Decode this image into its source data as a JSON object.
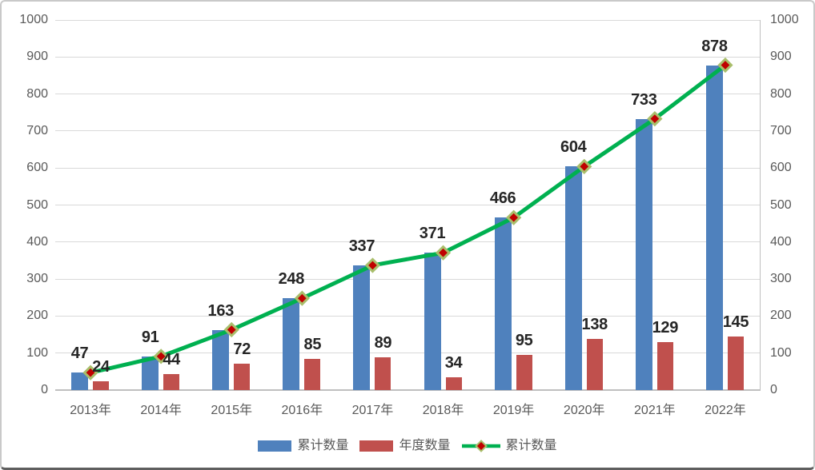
{
  "chart_data": {
    "type": "combo",
    "categories": [
      "2013年",
      "2014年",
      "2015年",
      "2016年",
      "2017年",
      "2018年",
      "2019年",
      "2020年",
      "2021年",
      "2022年"
    ],
    "series": [
      {
        "name": "累计数量",
        "kind": "bar",
        "color": "#4F81BD",
        "values": [
          47,
          91,
          163,
          248,
          337,
          371,
          466,
          604,
          733,
          878
        ]
      },
      {
        "name": "年度数量",
        "kind": "bar",
        "color": "#C0504D",
        "values": [
          24,
          44,
          72,
          85,
          89,
          34,
          95,
          138,
          129,
          145
        ]
      },
      {
        "name": "累计数量",
        "kind": "line",
        "color": "#00B050",
        "marker_shape": "diamond",
        "marker_fill": "#C00000",
        "marker_border": "#A9BE6B",
        "values": [
          47,
          91,
          163,
          248,
          337,
          371,
          466,
          604,
          733,
          878
        ]
      }
    ],
    "title": "",
    "xlabel": "",
    "ylabel": "",
    "ylim": [
      0,
      1000
    ],
    "y_step": 100,
    "left_axis_ticks": [
      "1000",
      "900",
      "800",
      "700",
      "600",
      "500",
      "400",
      "300",
      "200",
      "100",
      "0"
    ],
    "right_axis_ticks": [
      "1000",
      "900",
      "800",
      "700",
      "600",
      "500",
      "400",
      "300",
      "200",
      "100",
      "0"
    ],
    "grid": "horizontal-only",
    "legend_position": "bottom",
    "legend": [
      {
        "label": "累计数量",
        "swatch": "bar",
        "color": "#4F81BD"
      },
      {
        "label": "年度数量",
        "swatch": "bar",
        "color": "#C0504D"
      },
      {
        "label": "累计数量",
        "swatch": "line",
        "color": "#00B050",
        "marker_fill": "#C00000",
        "marker_border": "#A9BE6B"
      }
    ],
    "data_labels_shown": true
  },
  "styles": {
    "background": "#FFFFFF",
    "frame_border": "#C9C9C9",
    "frame_bottom_edge": "#5F5F5F",
    "grid_color": "#D9D9D9",
    "axis_line_color": "#BFBFBF",
    "tick_label_color": "#595959",
    "data_label_color": "#262626",
    "legend_text_color": "#595959"
  }
}
